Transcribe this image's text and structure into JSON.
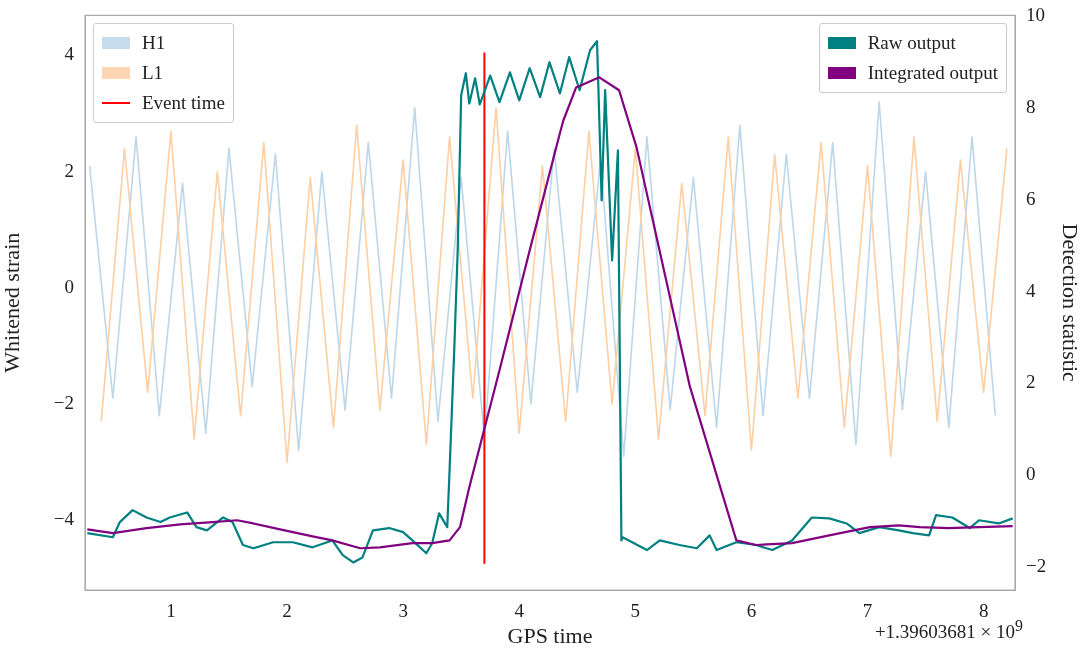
{
  "chart_data": {
    "type": "line",
    "xlabel": "GPS time",
    "ylabel": "Whitened strain",
    "y2label": "Detection statistic",
    "xlim": [
      0.26,
      8.27
    ],
    "xticks": [
      1,
      2,
      3,
      4,
      5,
      6,
      7,
      8
    ],
    "ylim": [
      -5.2,
      4.69
    ],
    "yticks": [
      {
        "value": -4,
        "label": "−4"
      },
      {
        "value": -2,
        "label": "−2"
      },
      0,
      2,
      4
    ],
    "y2lim": [
      -2.5,
      10.02
    ],
    "y2ticks": [
      {
        "value": -2,
        "label": "−2"
      },
      0,
      2,
      4,
      6,
      8,
      10
    ],
    "legend": "top left",
    "annotations": [
      "+1.39603681 × 10$^{9}$"
    ],
    "series": [
      {
        "name": "H1",
        "color": "#bcd6ea",
        "x": [
          0.3,
          0.5,
          0.7,
          0.9,
          1.1,
          1.3,
          1.5,
          1.7,
          1.9,
          2.1,
          2.3,
          2.5,
          2.7,
          2.9,
          3.1,
          3.3,
          3.5,
          3.7,
          3.9,
          4.1,
          4.3,
          4.5,
          4.7,
          4.9,
          5.1,
          5.3,
          5.5,
          5.7,
          5.9,
          6.1,
          6.3,
          6.5,
          6.7,
          6.9,
          7.1,
          7.3,
          7.5,
          7.7,
          7.9,
          8.1
        ],
        "values": [
          2.1,
          -1.9,
          2.6,
          -2.2,
          1.8,
          -2.5,
          2.4,
          -1.7,
          2.3,
          -2.8,
          2.0,
          -2.1,
          2.5,
          -1.9,
          3.1,
          -2.3,
          1.9,
          -2.6,
          2.7,
          -2.0,
          2.4,
          -1.8,
          2.2,
          -2.9,
          2.6,
          -2.1,
          1.9,
          -2.4,
          2.8,
          -2.2,
          2.3,
          -1.9,
          2.5,
          -2.7,
          3.2,
          -2.1,
          2.0,
          -2.4,
          2.6,
          -2.2
        ]
      },
      {
        "name": "L1",
        "color": "#ffcfa3",
        "x": [
          0.4,
          0.6,
          0.8,
          1.0,
          1.2,
          1.4,
          1.6,
          1.8,
          2.0,
          2.2,
          2.4,
          2.6,
          2.8,
          3.0,
          3.2,
          3.4,
          3.6,
          3.8,
          4.0,
          4.2,
          4.4,
          4.6,
          4.8,
          5.0,
          5.2,
          5.4,
          5.6,
          5.8,
          6.0,
          6.2,
          6.4,
          6.6,
          6.8,
          7.0,
          7.2,
          7.4,
          7.6,
          7.8,
          8.0,
          8.2
        ],
        "values": [
          -2.3,
          2.4,
          -1.8,
          2.7,
          -2.6,
          2.0,
          -2.2,
          2.5,
          -3.0,
          1.9,
          -2.4,
          2.8,
          -2.1,
          2.2,
          -2.7,
          2.6,
          -1.9,
          3.1,
          -2.5,
          2.1,
          -2.3,
          2.7,
          -2.0,
          2.4,
          -2.6,
          1.8,
          -2.2,
          2.6,
          -2.8,
          2.3,
          -1.9,
          2.5,
          -2.4,
          2.1,
          -2.9,
          2.6,
          -2.3,
          2.2,
          -1.8,
          2.4
        ]
      },
      {
        "name": "Event time",
        "type": "line",
        "color": "#ff0000",
        "x": [
          3.7,
          3.7
        ],
        "values": [
          -4.75,
          4.05
        ]
      },
      {
        "name": "Raw output",
        "axis": "y2",
        "color": "#008080",
        "x": [
          0.28,
          0.5,
          0.56,
          0.67,
          0.79,
          0.91,
          0.99,
          1.14,
          1.22,
          1.31,
          1.45,
          1.53,
          1.62,
          1.71,
          1.88,
          2.05,
          2.22,
          2.39,
          2.48,
          2.57,
          2.65,
          2.74,
          2.88,
          3.0,
          3.08,
          3.2,
          3.25,
          3.31,
          3.38,
          3.4,
          3.44,
          3.47,
          3.5,
          3.54,
          3.57,
          3.62,
          3.66,
          3.75,
          3.83,
          3.92,
          4.0,
          4.09,
          4.18,
          4.26,
          4.35,
          4.43,
          4.52,
          4.61,
          4.67,
          4.71,
          4.74,
          4.8,
          4.85,
          4.88,
          4.89,
          5.1,
          5.21,
          5.38,
          5.53,
          5.64,
          5.7,
          5.87,
          6.04,
          6.18,
          6.35,
          6.52,
          6.67,
          6.82,
          6.93,
          7.1,
          7.27,
          7.39,
          7.53,
          7.59,
          7.73,
          7.88,
          7.96,
          8.13,
          8.25
        ],
        "values": [
          -1.26,
          -1.35,
          -1.02,
          -0.76,
          -0.92,
          -1.02,
          -0.92,
          -0.81,
          -1.13,
          -1.2,
          -0.92,
          -1.02,
          -1.52,
          -1.59,
          -1.46,
          -1.46,
          -1.57,
          -1.42,
          -1.74,
          -1.9,
          -1.79,
          -1.2,
          -1.15,
          -1.24,
          -1.42,
          -1.7,
          -1.48,
          -0.83,
          -1.13,
          0.11,
          2.72,
          4.9,
          8.28,
          8.76,
          8.1,
          8.65,
          8.08,
          8.71,
          8.13,
          8.78,
          8.17,
          8.87,
          8.24,
          9.0,
          8.32,
          9.11,
          8.39,
          9.26,
          9.46,
          5.99,
          8.39,
          4.68,
          7.08,
          -1.42,
          -1.35,
          -1.63,
          -1.42,
          -1.52,
          -1.59,
          -1.31,
          -1.63,
          -1.46,
          -1.52,
          -1.63,
          -1.42,
          -0.92,
          -0.94,
          -1.05,
          -1.26,
          -1.13,
          -1.2,
          -1.26,
          -1.31,
          -0.87,
          -0.92,
          -1.15,
          -0.98,
          -1.05,
          -0.94
        ]
      },
      {
        "name": "Integrated output",
        "axis": "y2",
        "color": "#800080",
        "x": [
          0.28,
          0.5,
          0.79,
          1.08,
          1.36,
          1.57,
          1.71,
          1.94,
          2.22,
          2.39,
          2.63,
          2.8,
          3.08,
          3.25,
          3.4,
          3.49,
          3.57,
          3.83,
          4.09,
          4.35,
          4.38,
          4.49,
          4.69,
          4.86,
          5.01,
          5.15,
          5.47,
          5.87,
          6.04,
          6.35,
          6.67,
          7.02,
          7.27,
          7.45,
          7.7,
          7.96,
          8.25
        ],
        "values": [
          -1.18,
          -1.26,
          -1.15,
          -1.07,
          -1.02,
          -0.98,
          -1.05,
          -1.18,
          -1.33,
          -1.42,
          -1.59,
          -1.57,
          -1.48,
          -1.48,
          -1.42,
          -1.13,
          -0.26,
          2.29,
          4.9,
          7.45,
          7.73,
          8.45,
          8.67,
          8.39,
          7.15,
          5.56,
          1.93,
          -1.42,
          -1.52,
          -1.48,
          -1.31,
          -1.13,
          -1.09,
          -1.13,
          -1.15,
          -1.13,
          -1.11
        ]
      }
    ]
  }
}
